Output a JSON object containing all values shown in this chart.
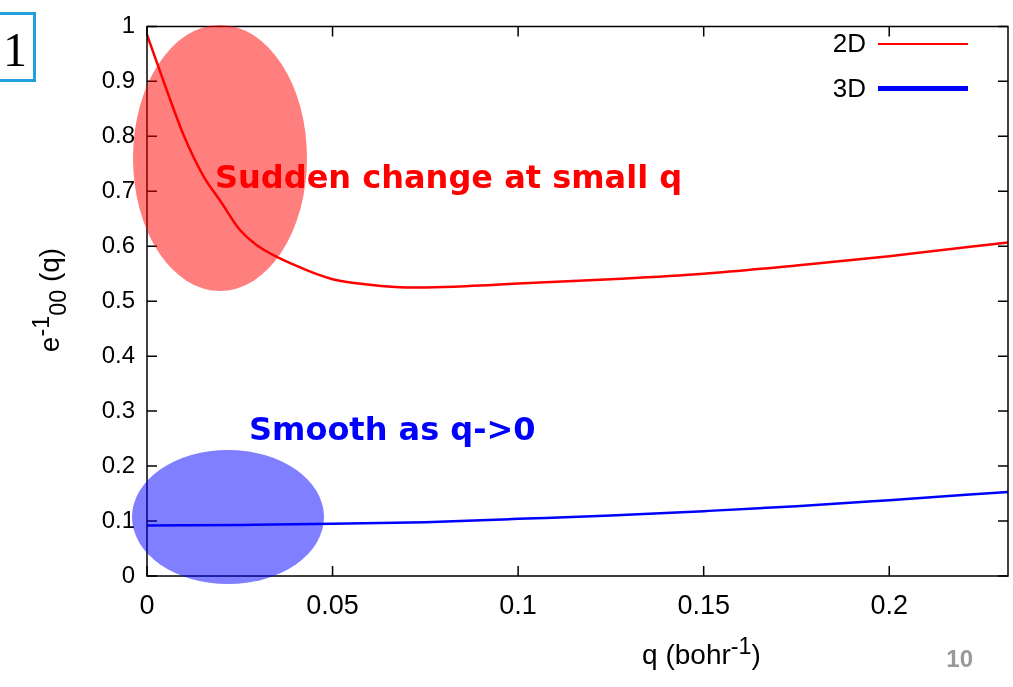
{
  "chart_data": {
    "type": "line",
    "xlabel": "q (bohr$^{-1}$)",
    "ylabel": "e$^{-1}$$_{00}$ (q)",
    "xlim": [
      0,
      0.232
    ],
    "xticks": [
      0,
      0.05,
      0.1,
      0.15,
      0.2
    ],
    "ylim": [
      0,
      1
    ],
    "yticks": [
      0,
      0.1,
      0.2,
      0.3,
      0.4,
      0.5,
      0.6,
      0.7,
      0.8,
      0.9,
      1
    ],
    "grid": false,
    "legend": "top right",
    "series": [
      {
        "name": "2D",
        "color": "#ff0000",
        "x": [
          0,
          0.005,
          0.01,
          0.015,
          0.02,
          0.025,
          0.03,
          0.04,
          0.05,
          0.06,
          0.07,
          0.08,
          0.1,
          0.125,
          0.15,
          0.175,
          0.2,
          0.232
        ],
        "values": [
          0.985,
          0.89,
          0.8,
          0.73,
          0.68,
          0.63,
          0.6,
          0.565,
          0.54,
          0.53,
          0.525,
          0.526,
          0.532,
          0.54,
          0.55,
          0.565,
          0.582,
          0.607
        ]
      },
      {
        "name": "3D",
        "color": "#0000ff",
        "x": [
          0,
          0.025,
          0.05,
          0.075,
          0.1,
          0.125,
          0.15,
          0.175,
          0.2,
          0.232
        ],
        "values": [
          0.092,
          0.093,
          0.095,
          0.098,
          0.104,
          0.11,
          0.118,
          0.127,
          0.138,
          0.153
        ]
      }
    ],
    "annotations": [
      "Sudden change at small q",
      "Smooth as q->0",
      "1",
      "10"
    ]
  }
}
